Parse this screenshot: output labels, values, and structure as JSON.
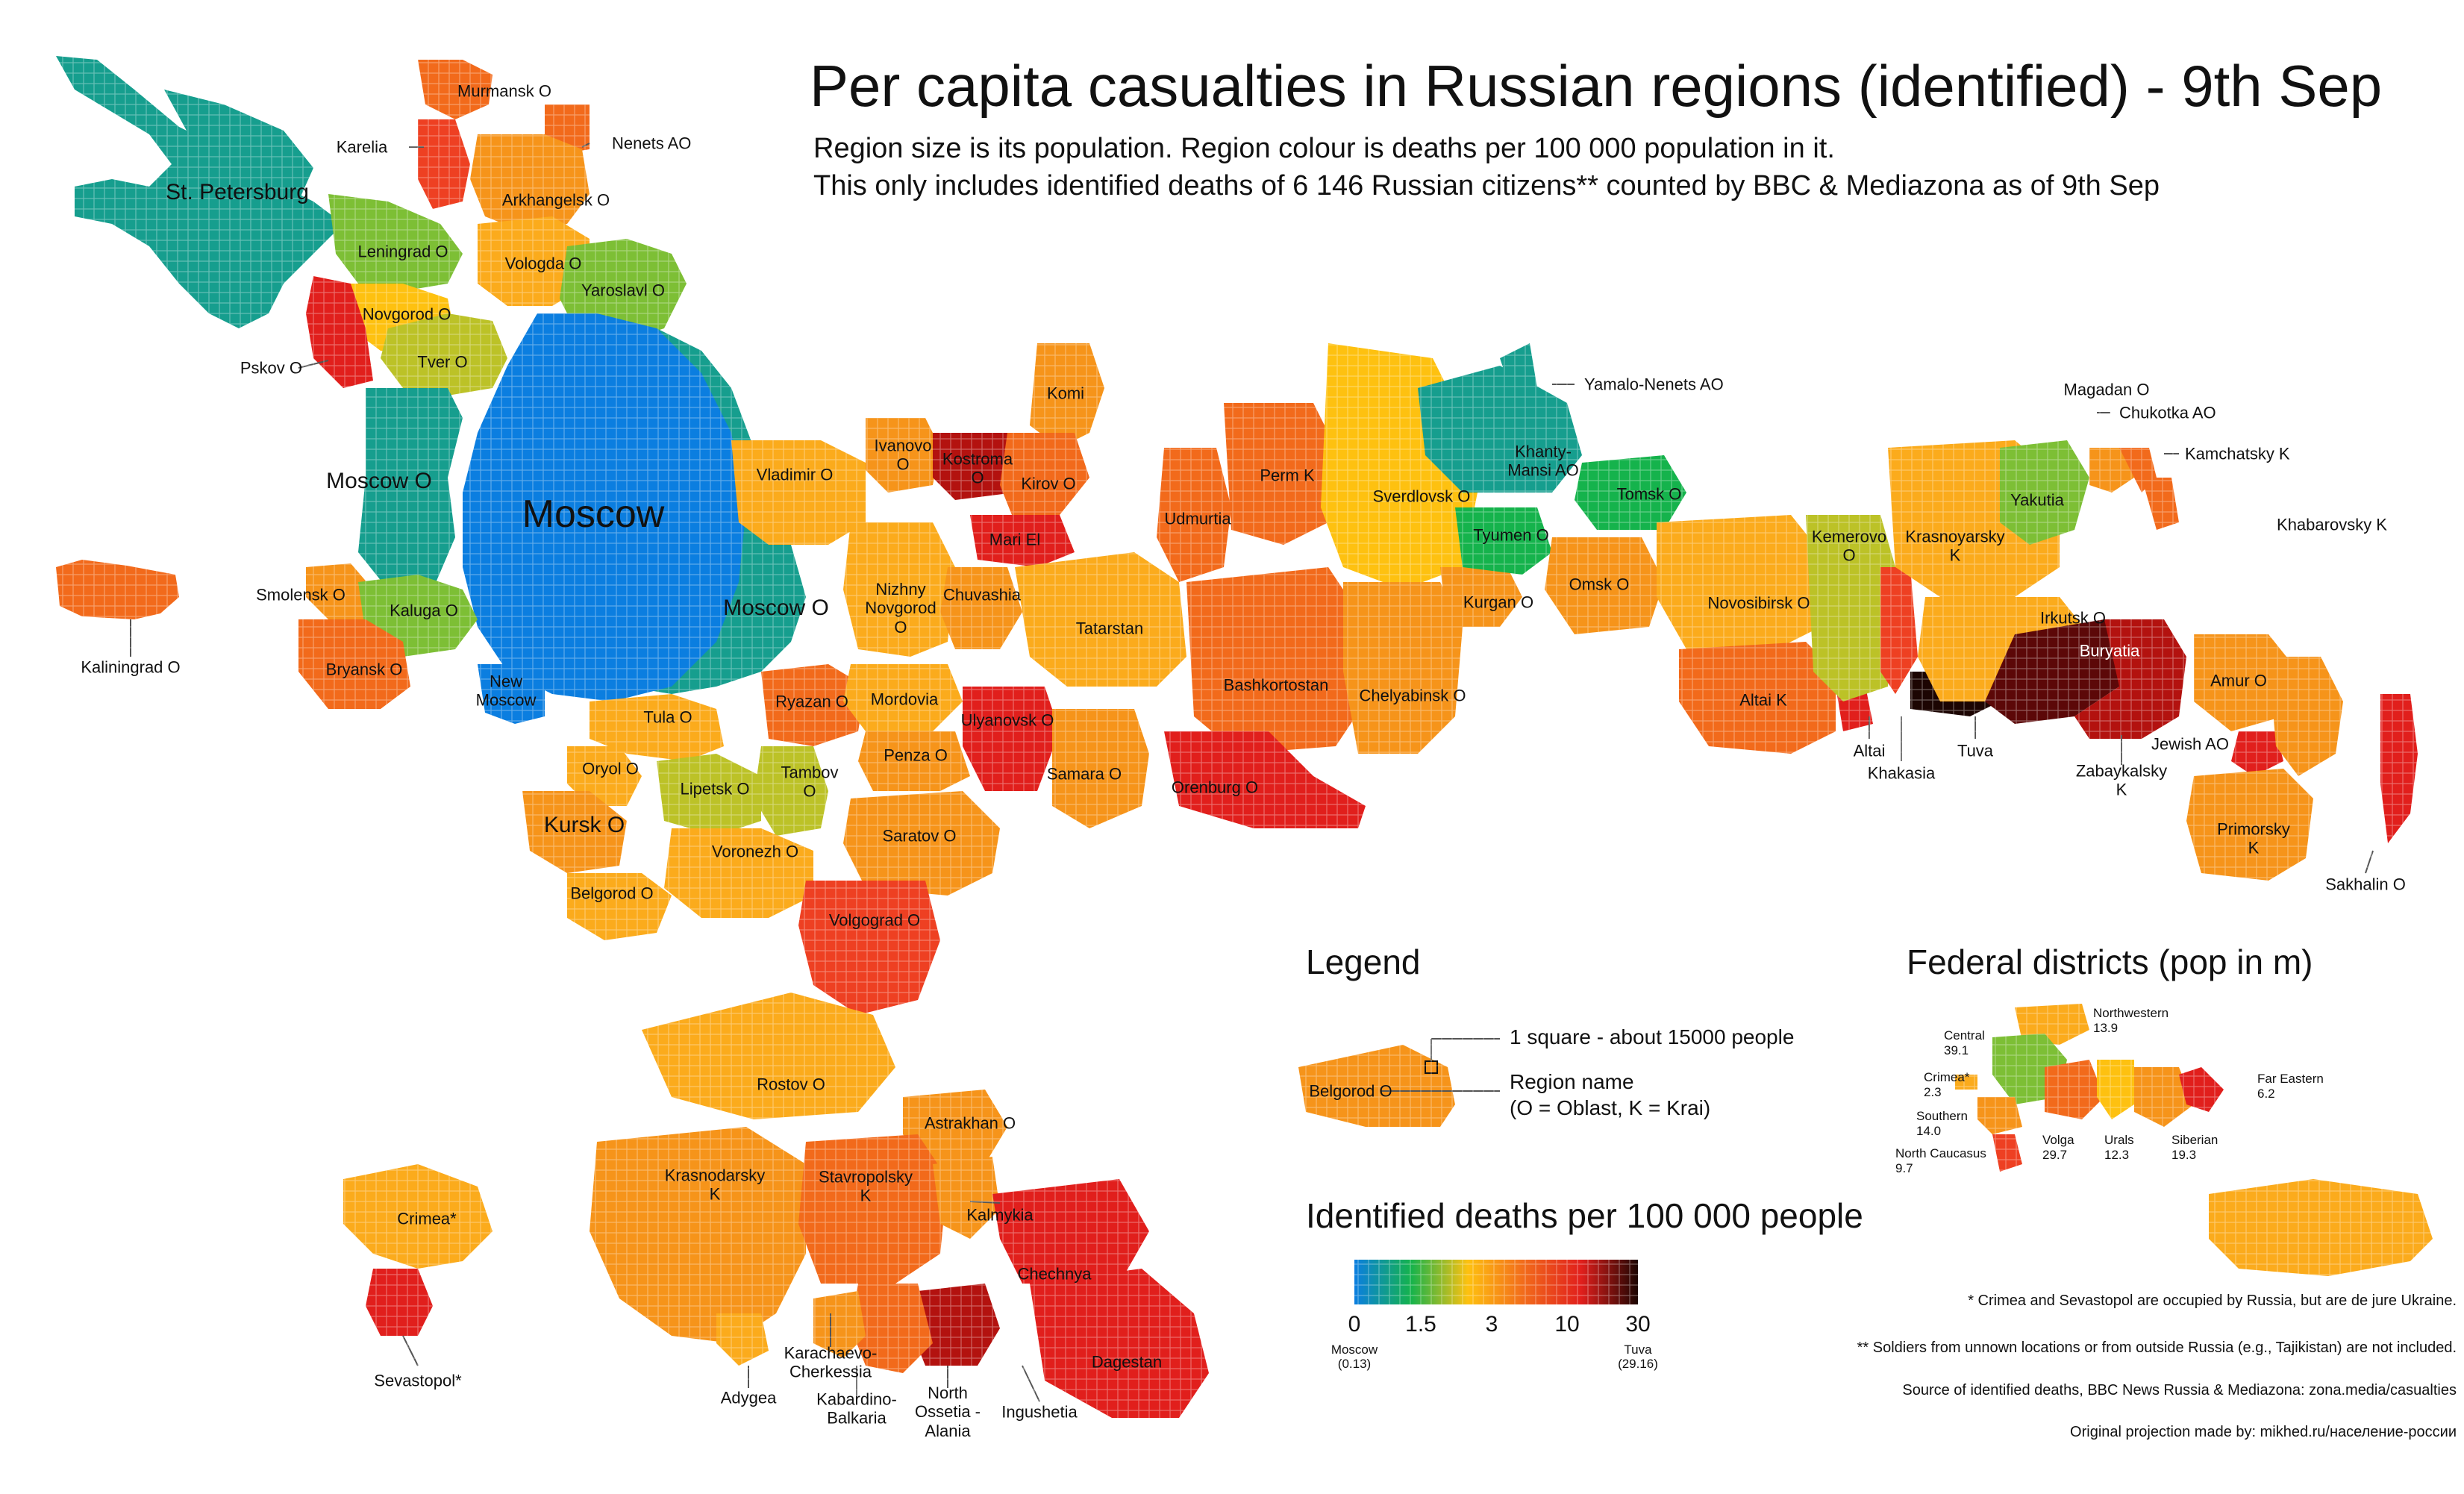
{
  "title": "Per capita casualties in Russian regions (identified) - 9th Sep",
  "subtitle_lines": [
    "Region size is its population. Region colour is deaths per 100 000 population in it.",
    "This only includes identified deaths of 6 146 Russian citizens** counted by BBC & Mediazona as of 9th Sep"
  ],
  "colors": {
    "deep_blue": "#0b7ee0",
    "teal": "#169e8e",
    "green": "#15b34c",
    "yellow_green": "#7dbf35",
    "olive": "#bcc227",
    "yellow": "#fec110",
    "light_orange": "#fbab1c",
    "orange": "#f6941a",
    "dark_orange": "#f26a1b",
    "red_orange": "#ee4022",
    "red": "#e11f1c",
    "dark_red": "#b3120f",
    "maroon": "#5c0808",
    "black": "#1c0502"
  },
  "regions": {
    "st_petersburg": "St. Petersburg",
    "murmansk": "Murmansk O",
    "karelia": "Karelia",
    "nenets": "Nenets AO",
    "arkhangelsk": "Arkhangelsk O",
    "leningrad": "Leningrad O",
    "vologda": "Vologda O",
    "yaroslavl": "Yaroslavl O",
    "novgorod": "Novgorod O",
    "pskov": "Pskov O",
    "tver": "Tver O",
    "moscow_o": "Moscow O",
    "moscow": "Moscow",
    "moscow_o_east": "Moscow O",
    "smolensk": "Smolensk O",
    "kaluga": "Kaluga O",
    "bryansk": "Bryansk O",
    "kaliningrad": "Kaliningrad O",
    "new_moscow": "New\nMoscow",
    "tula": "Tula O",
    "oryol": "Oryol O",
    "kursk": "Kursk O",
    "lipetsk": "Lipetsk O",
    "tambov": "Tambov\nO",
    "voronezh": "Voronezh O",
    "belgorod": "Belgorod O",
    "ryazan": "Ryazan O",
    "vladimir": "Vladimir O",
    "ivanovo": "Ivanovo\nO",
    "kostroma": "Kostroma\nO",
    "komi": "Komi",
    "kirov": "Kirov O",
    "mari_el": "Mari El",
    "nizhny": "Nizhny\nNovgorod\nO",
    "chuvashia": "Chuvashia",
    "mordovia": "Mordovia",
    "ulyanovsk": "Ulyanovsk O",
    "penza": "Penza O",
    "tatarstan": "Tatarstan",
    "samara": "Samara O",
    "saratov": "Saratov O",
    "volgograd": "Volgograd O",
    "rostov": "Rostov O",
    "astrakhan": "Astrakhan O",
    "krasnodarsky": "Krasnodarsky\nK",
    "stavropolsky": "Stavropolsky\nK",
    "kalmykia": "Kalmykia",
    "chechnya": "Chechnya",
    "dagestan": "Dagestan",
    "ingushetia": "Ingushetia",
    "north_ossetia": "North\nOssetia -\nAlania",
    "kabardino": "Kabardino-\nBalkaria",
    "karachaevo": "Karachaevo-\nCherkessia",
    "adygea": "Adygea",
    "crimea": "Crimea*",
    "sevastopol": "Sevastopol*",
    "udmurtia": "Udmurtia",
    "perm": "Perm K",
    "bashkortostan": "Bashkortostan",
    "orenburg": "Orenburg O",
    "chelyabinsk": "Chelyabinsk O",
    "sverdlovsk": "Sverdlovsk O",
    "kurgan": "Kurgan O",
    "tyumen": "Tyumen O",
    "khanty": "Khanty-\nMansi AO",
    "yamalo": "Yamalo-Nenets AO",
    "tomsk": "Tomsk O",
    "omsk": "Omsk O",
    "novosibirsk": "Novosibirsk O",
    "altai_k": "Altai K",
    "altai": "Altai",
    "khakasia": "Khakasia",
    "kemerovo": "Kemerovo\nO",
    "krasnoyarsky": "Krasnoyarsky\nK",
    "tuva": "Tuva",
    "irkutsk": "Irkutsk O",
    "buryatia": "Buryatia",
    "zabaykalsky": "Zabaykalsky\nK",
    "yakutia": "Yakutia",
    "magadan": "Magadan O",
    "chukotka": "Chukotka AO",
    "kamchatsky": "Kamchatsky K",
    "khabarovsky": "Khabarovsky K",
    "amur": "Amur O",
    "jewish": "Jewish AO",
    "primorsky": "Primorsky\nK",
    "sakhalin": "Sakhalin O"
  },
  "legend": {
    "heading": "Legend",
    "square_note": "1 square - about 15000 people",
    "region_name_note": "Region name\n(O = Oblast, K = Krai)",
    "example_region": "Belgorod O"
  },
  "scale": {
    "heading": "Identified deaths per 100 000 people",
    "ticks": [
      "0",
      "1.5",
      "3",
      "10",
      "30"
    ],
    "min_note": "Moscow\n(0.13)",
    "max_note": "Tuva\n(29.16)",
    "stops": [
      "#0b7ee0",
      "#15b34c",
      "#fec110",
      "#f26a1b",
      "#e11f1c",
      "#1c0502"
    ]
  },
  "federal_districts": {
    "heading": "Federal districts (pop in m)",
    "northwestern": "Northwestern\n13.9",
    "central": "Central\n39.1",
    "crimea": "Crimea*\n2.3",
    "southern": "Southern\n14.0",
    "north_caucasus": "North Caucasus\n9.7",
    "volga": "Volga\n29.7",
    "urals": "Urals\n12.3",
    "siberian": "Siberian\n19.3",
    "far_eastern": "Far Eastern\n6.2"
  },
  "footnotes": [
    "* Crimea and Sevastopol are occupied by Russia, but are de jure Ukraine.",
    "** Soldiers from unnown locations or from outside Russia (e.g., Tajikistan) are not included.",
    "Source of identified deaths, BBC News Russia & Mediazona: zona.media/casualties",
    "Original projection made by: mikhed.ru/население-россии"
  ]
}
